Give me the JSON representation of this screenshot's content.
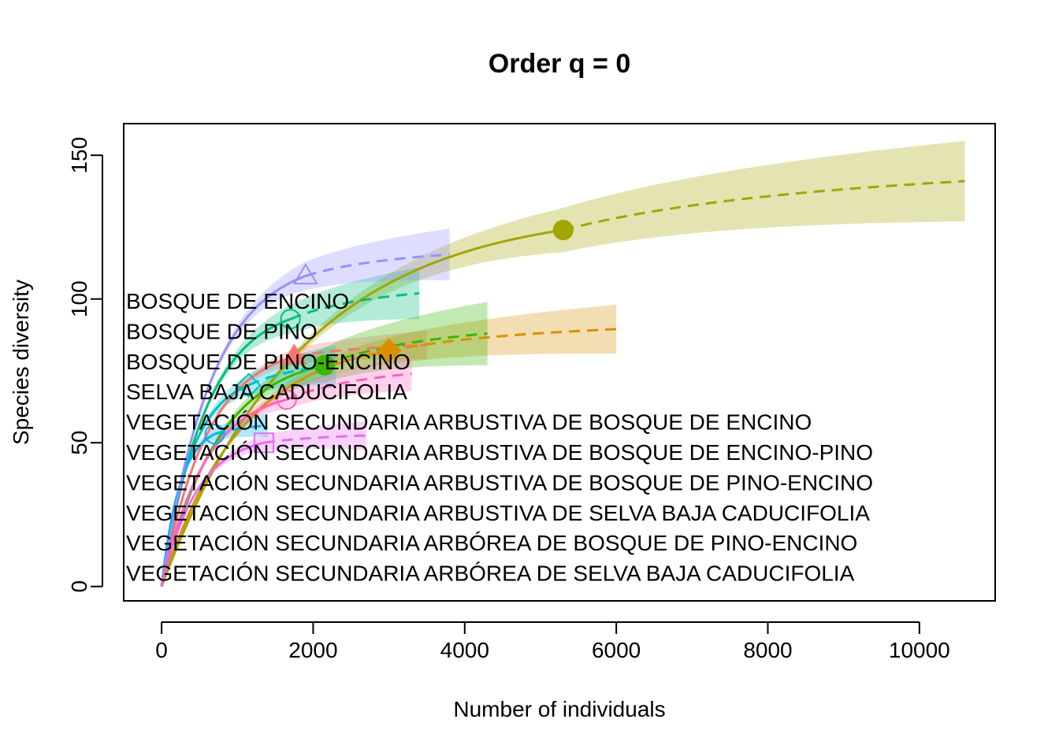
{
  "chart_data": {
    "type": "line",
    "title": "Order q = 0",
    "xlabel": "Number of individuals",
    "ylabel": "Species diversity",
    "xlim": [
      -500,
      11000
    ],
    "ylim": [
      -5,
      161
    ],
    "xticks": [
      0,
      2000,
      4000,
      6000,
      8000,
      10000
    ],
    "yticks": [
      0,
      50,
      100,
      150
    ],
    "grid": false,
    "legend_position": "left",
    "series": [
      {
        "name": "BOSQUE DE ENCINO",
        "color": "#F8766D",
        "marker": "triangle-filled",
        "n_obs": 1750,
        "s_obs": 80,
        "x_max": 3500,
        "s_max": 84,
        "ci_max": 5
      },
      {
        "name": "BOSQUE DE PINO",
        "color": "#D89000",
        "marker": "diamond-filled",
        "n_obs": 3000,
        "s_obs": 82,
        "x_max": 6000,
        "s_max": 89.5,
        "ci_max": 8.5
      },
      {
        "name": "BOSQUE DE PINO-ENCINO",
        "color": "#A3A500",
        "marker": "circle-filled",
        "n_obs": 5300,
        "s_obs": 124,
        "x_max": 10600,
        "s_max": 141,
        "ci_max": 14
      },
      {
        "name": "SELVA BAJA CADUCIFOLIA",
        "color": "#39B600",
        "marker": "circle-filled",
        "n_obs": 2150,
        "s_obs": 77,
        "x_max": 4300,
        "s_max": 88,
        "ci_max": 11
      },
      {
        "name": "VEGETACIÓN SECUNDARIA ARBUSTIVA DE BOSQUE DE ENCINO",
        "color": "#00BF7D",
        "marker": "circle-open",
        "n_obs": 1700,
        "s_obs": 93,
        "x_max": 3400,
        "s_max": 102,
        "ci_max": 9
      },
      {
        "name": "VEGETACIÓN SECUNDARIA ARBUSTIVA DE BOSQUE DE ENCINO-PINO",
        "color": "#00BFC4",
        "marker": "diamond-open",
        "n_obs": 1150,
        "s_obs": 70,
        "x_max": 2300,
        "s_max": 77,
        "ci_max": 7
      },
      {
        "name": "VEGETACIÓN SECUNDARIA ARBUSTIVA DE BOSQUE DE PINO-ENCINO",
        "color": "#00B0F6",
        "marker": "circle-open",
        "n_obs": 700,
        "s_obs": 53,
        "x_max": 1400,
        "s_max": 56,
        "ci_max": 4
      },
      {
        "name": "VEGETACIÓN SECUNDARIA ARBUSTIVA DE SELVA BAJA CADUCIFOLIA",
        "color": "#9590FF",
        "marker": "triangle-open",
        "n_obs": 1900,
        "s_obs": 108,
        "x_max": 3800,
        "s_max": 115.5,
        "ci_max": 9
      },
      {
        "name": "VEGETACIÓN SECUNDARIA ARBÓREA DE BOSQUE DE PINO-ENCINO",
        "color": "#E76BF3",
        "marker": "square-open",
        "n_obs": 1350,
        "s_obs": 50,
        "x_max": 2700,
        "s_max": 52.5,
        "ci_max": 5
      },
      {
        "name": "VEGETACIÓN SECUNDARIA ARBÓREA DE SELVA BAJA CADUCIFOLIA",
        "color": "#FF62BC",
        "marker": "circle-open",
        "n_obs": 1650,
        "s_obs": 65,
        "x_max": 3300,
        "s_max": 74,
        "ci_max": 6
      }
    ]
  }
}
